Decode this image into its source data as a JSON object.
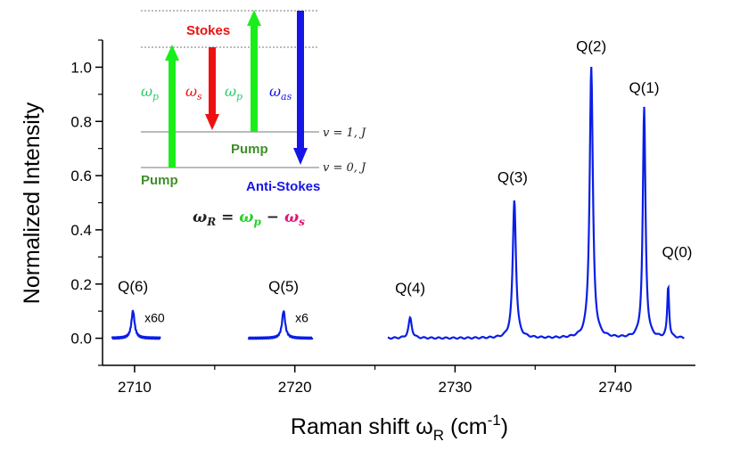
{
  "chart_data": {
    "type": "line",
    "xlabel": "Raman shift ω",
    "xlabel_sub": "R",
    "xlabel_unit": " (cm",
    "xlabel_sup": "-1",
    "xlabel_close": ")",
    "ylabel": "Normalized Intensity",
    "xlim": [
      2708,
      2745
    ],
    "ylim": [
      -0.1,
      1.1
    ],
    "x_ticks": [
      2710,
      2720,
      2730,
      2740
    ],
    "x_tick_labels": [
      "2710",
      "2720",
      "2730",
      "2740"
    ],
    "y_ticks": [
      0.0,
      0.2,
      0.4,
      0.6,
      0.8,
      1.0
    ],
    "y_tick_labels": [
      "0.0",
      "0.2",
      "0.4",
      "0.6",
      "0.8",
      "1.0"
    ],
    "line_color": "#0a1ee6",
    "segments": [
      {
        "x_range": [
          2708.6,
          2711.6
        ],
        "scale_label": "x60",
        "peaks": [
          {
            "label": "Q(6)",
            "x": 2709.9,
            "height": 0.1,
            "width": 0.12
          }
        ]
      },
      {
        "x_range": [
          2717.1,
          2721.1
        ],
        "scale_label": "x6",
        "peaks": [
          {
            "label": "Q(5)",
            "x": 2719.3,
            "height": 0.1,
            "width": 0.12
          }
        ]
      },
      {
        "x_range": [
          2725.8,
          2744.3
        ],
        "scale_label": "",
        "peaks": [
          {
            "label": "Q(4)",
            "x": 2727.2,
            "height": 0.075,
            "width": 0.12
          },
          {
            "label": "Q(3)",
            "x": 2733.7,
            "height": 0.51,
            "width": 0.12
          },
          {
            "label": "Q(2)",
            "x": 2738.5,
            "height": 1.0,
            "width": 0.12
          },
          {
            "label": "Q(1)",
            "x": 2741.8,
            "height": 0.85,
            "width": 0.1
          },
          {
            "label": "Q(0)",
            "x": 2743.3,
            "height": 0.19,
            "width": 0.07
          }
        ]
      }
    ]
  },
  "inset": {
    "stokes_label": "Stokes",
    "anti_stokes_label": "Anti-Stokes",
    "pump_label_1": "Pump",
    "pump_label_2": "Pump",
    "omega_p_1": "ω",
    "omega_p_1_sub": "p",
    "omega_s": "ω",
    "omega_s_sub": "s",
    "omega_p_2": "ω",
    "omega_p_2_sub": "p",
    "omega_as": "ω",
    "omega_as_sub": "as",
    "level_v1": "v = 1, J",
    "level_v0": "v = 0, J",
    "eq_lhs": "ω",
    "eq_lhs_sub": "R",
    "eq_equals": " = ",
    "eq_p": "ω",
    "eq_p_sub": "p",
    "eq_minus": " − ",
    "eq_s": "ω",
    "eq_s_sub": "s",
    "colors": {
      "green": "#1aee1a",
      "red": "#ee1111",
      "blue": "#1515e6",
      "pump_text": "#3f8f2a",
      "omega_p_text": "#2bc96a",
      "omega_s_text": "#ee1111",
      "omega_as_text": "#1515e6",
      "eq_p_color": "#2ad02a",
      "eq_s_color": "#e0157a",
      "eq_lhs_color": "#222222"
    }
  }
}
